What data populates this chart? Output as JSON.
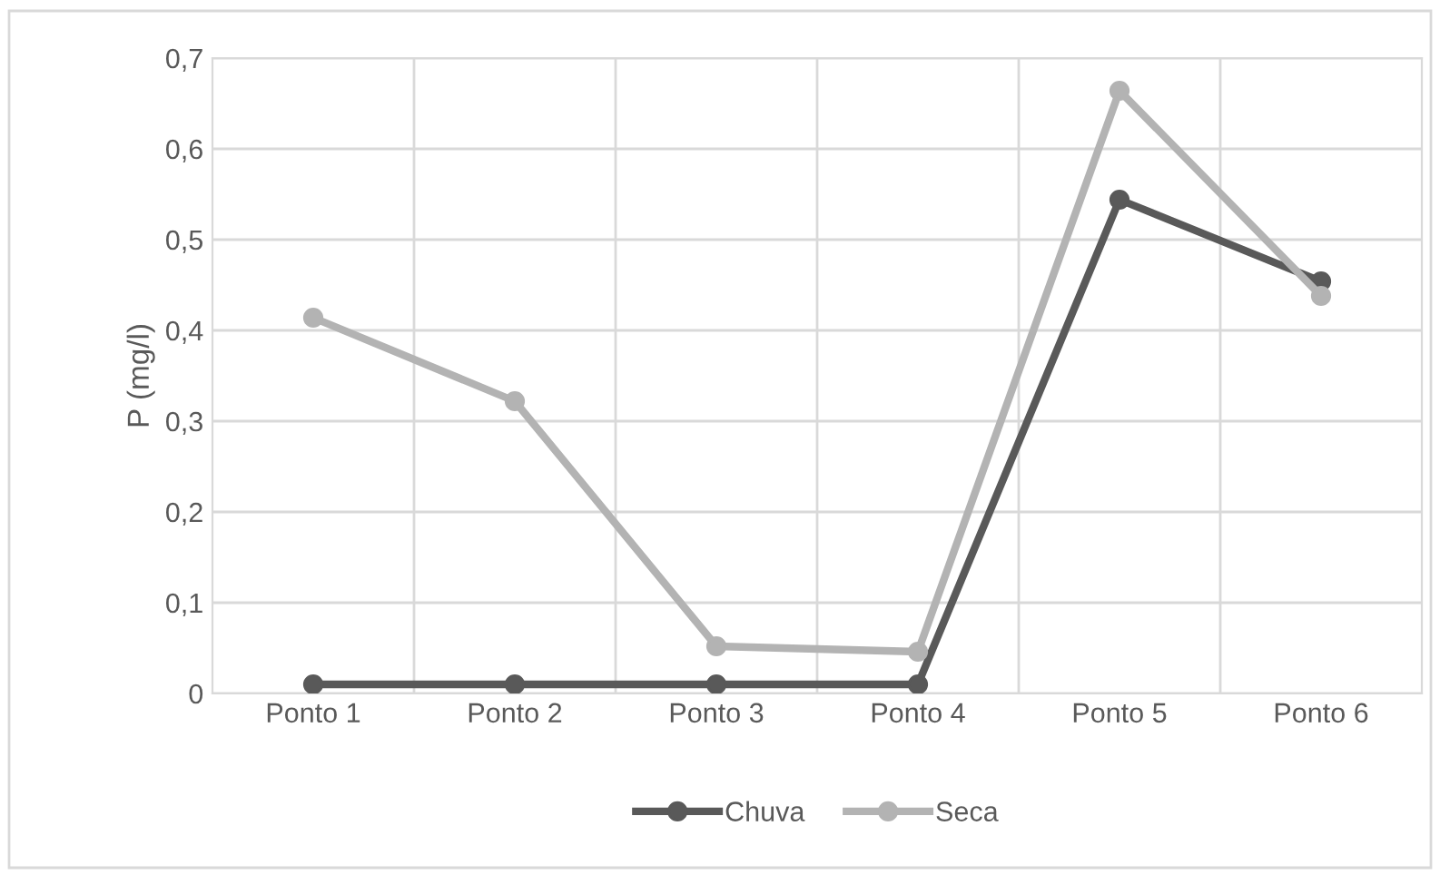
{
  "chart_data": {
    "type": "line",
    "ylabel": "P (mg/l)",
    "categories": [
      "Ponto 1",
      "Ponto 2",
      "Ponto 3",
      "Ponto 4",
      "Ponto 5",
      "Ponto 6"
    ],
    "series": [
      {
        "name": "Chuva",
        "color": "#595959",
        "values": [
          0.01,
          0.01,
          0.01,
          0.01,
          0.544,
          0.454
        ]
      },
      {
        "name": "Seca",
        "color": "#b3b3b3",
        "values": [
          0.414,
          0.322,
          0.052,
          0.046,
          0.664,
          0.438
        ]
      }
    ],
    "ylim": [
      0,
      0.7
    ],
    "yticks": [
      {
        "value": 0,
        "label": "0"
      },
      {
        "value": 0.1,
        "label": "0,1"
      },
      {
        "value": 0.2,
        "label": "0,2"
      },
      {
        "value": 0.3,
        "label": "0,3"
      },
      {
        "value": 0.4,
        "label": "0,4"
      },
      {
        "value": 0.5,
        "label": "0,5"
      },
      {
        "value": 0.6,
        "label": "0,6"
      },
      {
        "value": 0.7,
        "label": "0,7"
      }
    ],
    "grid": true,
    "legend": "bottom",
    "marker": "circle",
    "line_style": "solid"
  }
}
